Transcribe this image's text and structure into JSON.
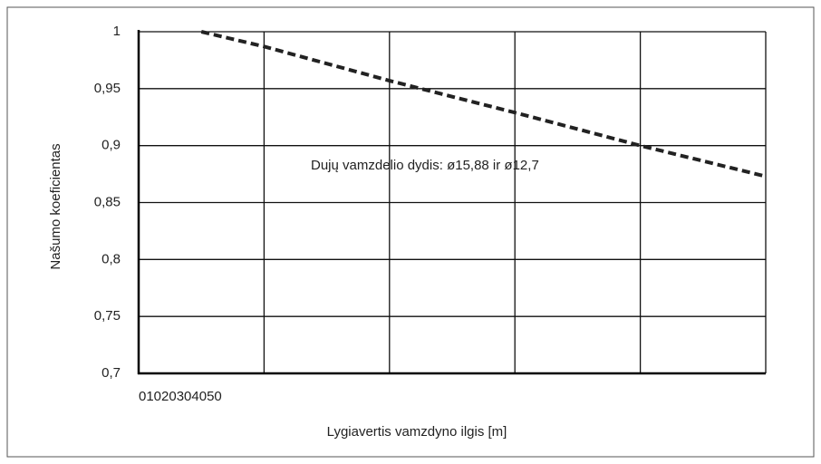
{
  "chart_data": {
    "type": "line",
    "x_label": "Lygiavertis vamzdyno ilgis [m]",
    "y_label": "Našumo koeficientas",
    "annotation": "Dujų vamzdelio dydis: ø15,88 ir ø12,7",
    "x": [
      5,
      10,
      20,
      30,
      40,
      50
    ],
    "series": [
      {
        "color": "#222222",
        "values": [
          1,
          0.987,
          0.957,
          0.929,
          0.9,
          0.873
        ]
      }
    ],
    "xlim": [
      0,
      50
    ],
    "xticks": [
      0,
      10,
      20,
      30,
      40,
      50
    ],
    "ylim": [
      0.7,
      1
    ],
    "yticks": [
      {
        "value": 0.7,
        "label": "0,7"
      },
      {
        "value": 0.75,
        "label": "0,75"
      },
      {
        "value": 0.8,
        "label": "0,8"
      },
      {
        "value": 0.85,
        "label": "0,85"
      },
      {
        "value": 0.9,
        "label": "0,9"
      },
      {
        "value": 0.95,
        "label": "0,95"
      },
      1
    ],
    "grid": true,
    "dashed": true
  }
}
